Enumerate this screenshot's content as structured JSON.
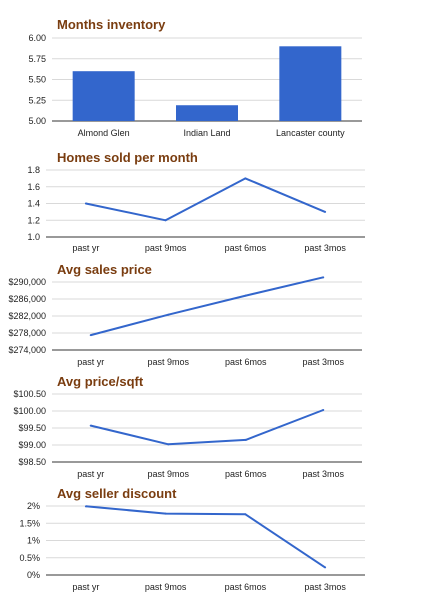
{
  "colors": {
    "series": "#3366cc",
    "title": "#7a3d10",
    "grid": "#d9d9d9",
    "axis": "#333333"
  },
  "chart_data": [
    {
      "type": "bar",
      "title": "Months inventory",
      "categories": [
        "Almond Glen",
        "Indian Land",
        "Lancaster county"
      ],
      "values": [
        5.6,
        5.19,
        5.9
      ],
      "ylim": [
        5.0,
        6.0
      ],
      "y_ticks": [
        "6.00",
        "5.75",
        "5.50",
        "5.25",
        "5.00"
      ],
      "grid": true,
      "legend": "none"
    },
    {
      "type": "line",
      "title": "Homes sold per month",
      "categories": [
        "past yr",
        "past 9mos",
        "past 6mos",
        "past 3mos"
      ],
      "values": [
        1.4,
        1.2,
        1.7,
        1.3
      ],
      "ylim": [
        1.0,
        1.8
      ],
      "y_ticks": [
        "1.8",
        "1.6",
        "1.4",
        "1.2",
        "1.0"
      ],
      "grid": true,
      "legend": "none"
    },
    {
      "type": "line",
      "title": "Avg sales price",
      "categories": [
        "past yr",
        "past 9mos",
        "past 6mos",
        "past 3mos"
      ],
      "values": [
        277500,
        282300,
        286800,
        291100
      ],
      "ylim": [
        274000,
        290000
      ],
      "y_ticks": [
        "$290,000",
        "$286,000",
        "$282,000",
        "$278,000",
        "$274,000"
      ],
      "grid": true,
      "legend": "none"
    },
    {
      "type": "line",
      "title": "Avg price/sqft",
      "categories": [
        "past yr",
        "past 9mos",
        "past 6mos",
        "past 3mos"
      ],
      "values": [
        99.57,
        99.02,
        99.15,
        100.03
      ],
      "ylim": [
        98.5,
        100.5
      ],
      "y_ticks": [
        "$100.50",
        "$100.00",
        "$99.50",
        "$99.00",
        "$98.50"
      ],
      "grid": true,
      "legend": "none"
    },
    {
      "type": "line",
      "title": "Avg seller discount",
      "categories": [
        "past yr",
        "past 9mos",
        "past 6mos",
        "past 3mos"
      ],
      "values": [
        1.99,
        1.78,
        1.76,
        0.22
      ],
      "ylim": [
        0,
        2
      ],
      "y_ticks": [
        "2%",
        "1.5%",
        "1%",
        "0.5%",
        "0%"
      ],
      "grid": true,
      "legend": "none"
    }
  ]
}
